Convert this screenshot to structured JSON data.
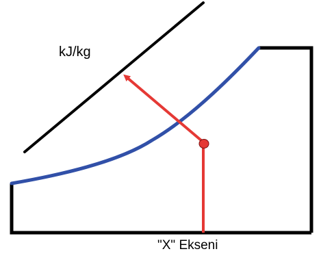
{
  "diagram": {
    "scale_label": "kJ/kg",
    "x_axis_label": "\"X\" Ekseni"
  },
  "colors": {
    "outline": "#000000",
    "curve": "#3150a8",
    "indicator": "#e53935",
    "background": "#ffffff"
  }
}
